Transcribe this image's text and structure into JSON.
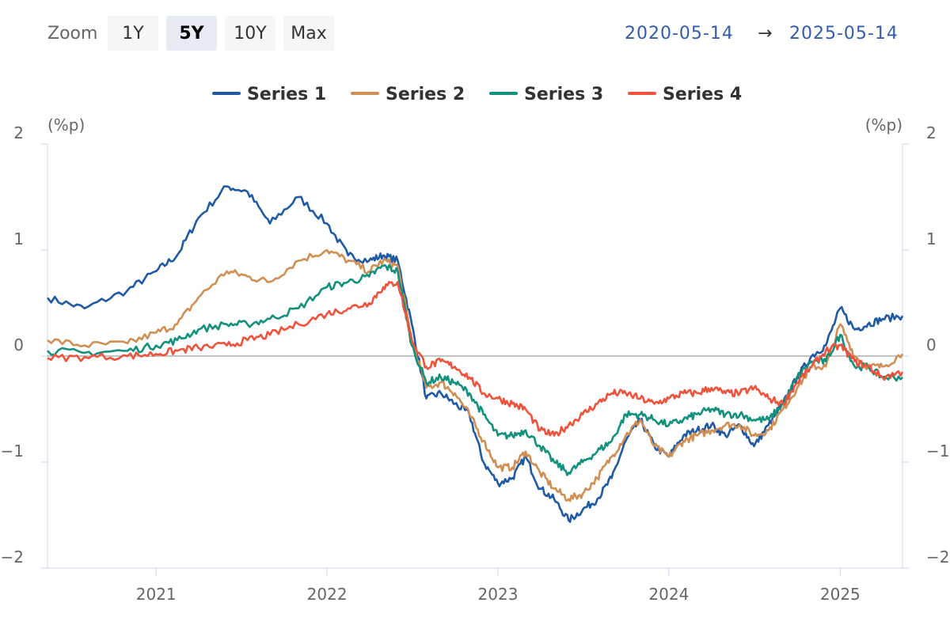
{
  "toolbar": {
    "zoom_label": "Zoom",
    "buttons": [
      "1Y",
      "5Y",
      "10Y",
      "Max"
    ],
    "active": "5Y",
    "range_from": "2020-05-14",
    "range_arrow": "→",
    "range_to": "2025-05-14"
  },
  "chart_data": {
    "type": "line",
    "title": "",
    "xlabel": "",
    "ylabel_left": "(%p)",
    "ylabel_right": "(%p)",
    "x_range": [
      "2020-05-14",
      "2025-05-14"
    ],
    "x_ticks": [
      "2021",
      "2022",
      "2023",
      "2024",
      "2025"
    ],
    "y_ticks": [
      "2",
      "1",
      "0",
      "−1",
      "−2"
    ],
    "ylim": [
      -2,
      2
    ],
    "grid": false,
    "legend_position": "top-center",
    "zero_line": true,
    "x": [
      "2020-05-14",
      "2020-08-01",
      "2020-11-01",
      "2021-01-01",
      "2021-02-15",
      "2021-04-01",
      "2021-06-01",
      "2021-07-15",
      "2021-09-01",
      "2021-11-01",
      "2022-01-01",
      "2022-02-15",
      "2022-04-01",
      "2022-05-01",
      "2022-06-01",
      "2022-07-01",
      "2022-08-01",
      "2022-09-01",
      "2022-10-01",
      "2022-11-01",
      "2022-12-01",
      "2023-01-01",
      "2023-02-01",
      "2023-03-01",
      "2023-04-01",
      "2023-05-01",
      "2023-06-01",
      "2023-07-01",
      "2023-08-01",
      "2023-09-01",
      "2023-10-01",
      "2023-11-01",
      "2023-12-01",
      "2024-01-01",
      "2024-02-01",
      "2024-03-01",
      "2024-04-01",
      "2024-05-01",
      "2024-06-01",
      "2024-07-01",
      "2024-08-01",
      "2024-09-01",
      "2024-10-01",
      "2024-11-01",
      "2024-12-01",
      "2025-01-01",
      "2025-02-01",
      "2025-03-01",
      "2025-04-01",
      "2025-05-14"
    ],
    "series": [
      {
        "name": "Series 1",
        "color": "#1f5aa6",
        "values": [
          0.55,
          0.45,
          0.62,
          0.8,
          0.95,
          1.3,
          1.6,
          1.55,
          1.25,
          1.5,
          1.25,
          0.95,
          0.9,
          0.95,
          0.9,
          0.3,
          -0.4,
          -0.35,
          -0.45,
          -0.55,
          -1.0,
          -1.2,
          -1.15,
          -0.95,
          -1.25,
          -1.35,
          -1.55,
          -1.45,
          -1.35,
          -1.15,
          -0.8,
          -0.6,
          -0.85,
          -0.95,
          -0.75,
          -0.7,
          -0.65,
          -0.75,
          -0.65,
          -0.85,
          -0.65,
          -0.45,
          -0.2,
          0.0,
          0.1,
          0.45,
          0.25,
          0.3,
          0.35,
          0.38
        ]
      },
      {
        "name": "Series 2",
        "color": "#d18e52",
        "values": [
          0.15,
          0.1,
          0.12,
          0.22,
          0.3,
          0.55,
          0.8,
          0.75,
          0.7,
          0.9,
          1.0,
          0.9,
          0.8,
          0.9,
          0.85,
          0.15,
          -0.3,
          -0.25,
          -0.35,
          -0.55,
          -0.8,
          -1.05,
          -1.05,
          -0.9,
          -1.1,
          -1.25,
          -1.35,
          -1.3,
          -1.15,
          -0.95,
          -0.75,
          -0.6,
          -0.85,
          -0.95,
          -0.8,
          -0.75,
          -0.7,
          -0.65,
          -0.65,
          -0.75,
          -0.7,
          -0.5,
          -0.3,
          -0.1,
          -0.1,
          0.3,
          0.0,
          -0.1,
          -0.1,
          0.02
        ]
      },
      {
        "name": "Series 3",
        "color": "#12917c",
        "values": [
          0.05,
          0.03,
          0.05,
          0.1,
          0.15,
          0.25,
          0.3,
          0.3,
          0.35,
          0.45,
          0.65,
          0.7,
          0.75,
          0.85,
          0.8,
          0.1,
          -0.25,
          -0.2,
          -0.25,
          -0.35,
          -0.55,
          -0.75,
          -0.75,
          -0.7,
          -0.85,
          -1.0,
          -1.1,
          -1.0,
          -0.9,
          -0.8,
          -0.55,
          -0.55,
          -0.6,
          -0.65,
          -0.6,
          -0.55,
          -0.5,
          -0.55,
          -0.55,
          -0.6,
          -0.6,
          -0.45,
          -0.2,
          -0.05,
          -0.05,
          0.2,
          -0.1,
          -0.1,
          -0.2,
          -0.2
        ]
      },
      {
        "name": "Series 4",
        "color": "#f0533c",
        "values": [
          -0.02,
          -0.01,
          0.0,
          0.02,
          0.05,
          0.08,
          0.1,
          0.15,
          0.2,
          0.3,
          0.4,
          0.45,
          0.5,
          0.65,
          0.7,
          0.15,
          -0.1,
          -0.05,
          -0.1,
          -0.2,
          -0.35,
          -0.4,
          -0.45,
          -0.5,
          -0.7,
          -0.75,
          -0.65,
          -0.55,
          -0.45,
          -0.35,
          -0.35,
          -0.4,
          -0.45,
          -0.4,
          -0.35,
          -0.35,
          -0.3,
          -0.35,
          -0.35,
          -0.3,
          -0.4,
          -0.45,
          -0.25,
          -0.1,
          0.05,
          0.1,
          -0.05,
          -0.1,
          -0.2,
          -0.15
        ]
      }
    ]
  }
}
